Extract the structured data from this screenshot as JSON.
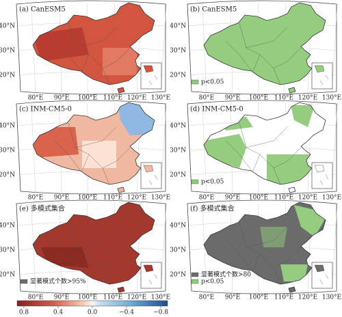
{
  "panels": [
    {
      "label": "(a) CanESM5",
      "lat_labels": [
        "40°N",
        "30°N",
        "20°N"
      ],
      "lon_labels": [
        "80°E",
        "90°E",
        "100°E",
        "110°E",
        "120°E",
        "130°E"
      ],
      "legend": []
    },
    {
      "label": "(b) CanESM5",
      "lat_labels": [
        "40°N",
        "30°N",
        "20°N"
      ],
      "lon_labels": [
        "80°E",
        "90°E",
        "100°E",
        "110°E",
        "120°E",
        "130°E"
      ],
      "legend": [
        {
          "label": "p<0.05",
          "color": "#8fc97a"
        }
      ]
    },
    {
      "label": "(c) INM-CM5-0",
      "lat_labels": [
        "40°N",
        "30°N",
        "20°N"
      ],
      "lon_labels": [
        "80°E",
        "90°E",
        "100°E",
        "110°E",
        "120°E",
        "130°E"
      ],
      "legend": []
    },
    {
      "label": "(d) INM-CM5-0",
      "lat_labels": [
        "40°N",
        "30°N",
        "20°N"
      ],
      "lon_labels": [
        "80°E",
        "90°E",
        "100°E",
        "110°E",
        "120°E",
        "130°E"
      ],
      "legend": [
        {
          "label": "p<0.05",
          "color": "#8fc97a"
        }
      ]
    },
    {
      "label": "(e) 多模式集合",
      "lat_labels": [
        "40°N",
        "30°N",
        "20°N"
      ],
      "lon_labels": [
        "80°E",
        "90°E",
        "100°E",
        "110°E",
        "120°E",
        "130°E"
      ],
      "legend": [
        {
          "label": "显著模式个数>95%",
          "color": "#6b6b6b"
        }
      ]
    },
    {
      "label": "(f) 多模式集合",
      "lat_labels": [
        "40°N",
        "30°N",
        "20°N"
      ],
      "lon_labels": [
        "80°E",
        "90°E",
        "100°E",
        "110°E",
        "120°E",
        "130°E"
      ],
      "legend": [
        {
          "label": "显著模式个数>80",
          "color": "#6b6b6b"
        },
        {
          "label": "p<0.05",
          "color": "#8fc97a"
        }
      ]
    }
  ],
  "colorbar": {
    "ticks": [
      0.8,
      0.4,
      {
        "value": 0,
        "label": "0.0"
      },
      {
        "value": -0.4,
        "label": "−0.4"
      },
      {
        "value": -0.8,
        "label": "−0.8"
      }
    ]
  }
}
